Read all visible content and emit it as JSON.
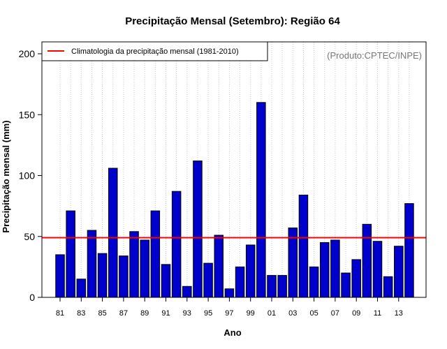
{
  "chart_data": {
    "type": "bar",
    "title": "Precipitação Mensal (Setembro): Região 64",
    "xlabel": "Ano",
    "ylabel": "Precipitação mensal (mm)",
    "ylim": [
      0,
      200
    ],
    "yticks": [
      0,
      50,
      100,
      150,
      200
    ],
    "categories": [
      "81",
      "82",
      "83",
      "84",
      "85",
      "86",
      "87",
      "88",
      "89",
      "90",
      "91",
      "92",
      "93",
      "94",
      "95",
      "96",
      "97",
      "98",
      "99",
      "00",
      "01",
      "02",
      "03",
      "04",
      "05",
      "06",
      "07",
      "08",
      "09",
      "10",
      "11",
      "12",
      "13",
      "14"
    ],
    "tick_labels": [
      "81",
      "83",
      "85",
      "87",
      "89",
      "91",
      "93",
      "95",
      "97",
      "99",
      "01",
      "03",
      "05",
      "07",
      "09",
      "11",
      "13"
    ],
    "values": [
      35,
      71,
      15,
      55,
      36,
      106,
      34,
      54,
      47,
      71,
      27,
      87,
      9,
      112,
      28,
      51,
      7,
      25,
      43,
      160,
      18,
      18,
      57,
      84,
      25,
      45,
      47,
      20,
      31,
      60,
      46,
      17,
      42,
      77
    ],
    "climatology": 49,
    "bar_color": "#0000cc",
    "climatology_color": "#ff0000",
    "legend": {
      "label": "Climatologia da precipitação mensal (1981-2010)",
      "placement": "top-left"
    },
    "credit": "(Produto:CPTEC/INPE)",
    "grid": "vertical-dotted"
  }
}
